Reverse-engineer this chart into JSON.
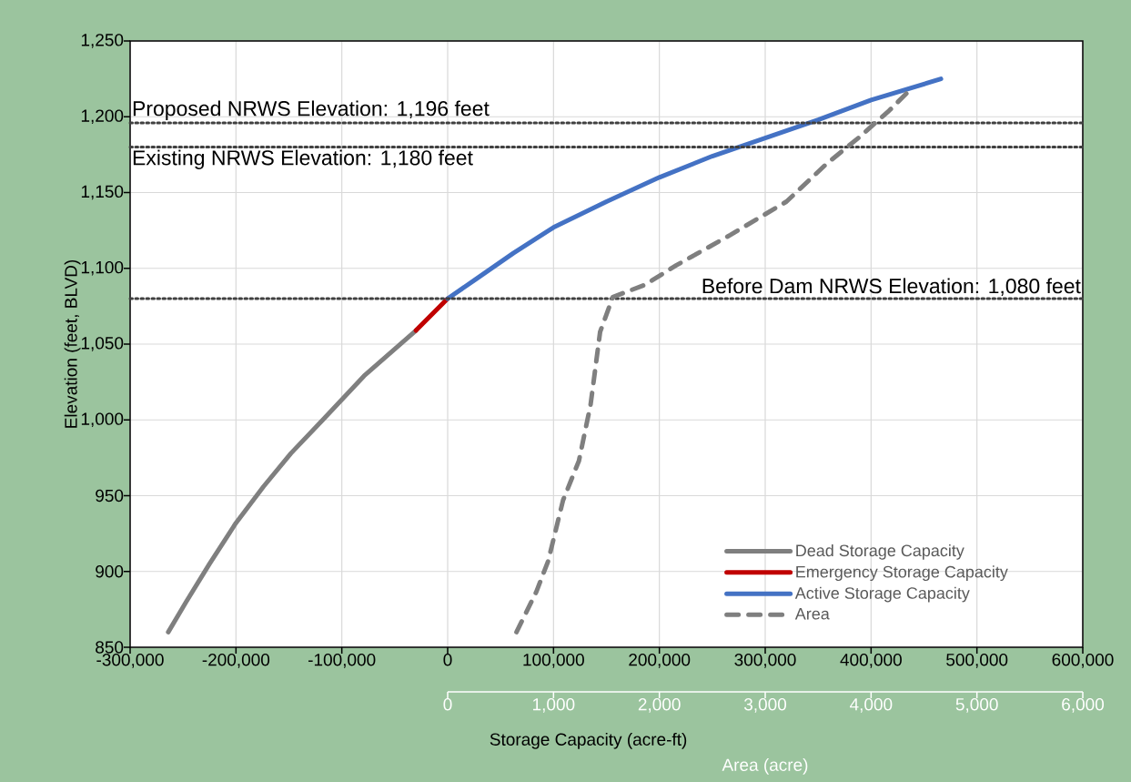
{
  "chart_data": {
    "type": "line",
    "xlabel": "Storage Capacity (acre-ft)",
    "x2label": "Area (acre)",
    "ylabel": "Elevation (feet, BLVD)",
    "xlim": [
      -300000,
      600000
    ],
    "x2lim": [
      0,
      6000
    ],
    "ylim": [
      850,
      1250
    ],
    "xticks": [
      {
        "value": -300000,
        "label": "-300,000"
      },
      {
        "value": -200000,
        "label": "-200,000"
      },
      {
        "value": -100000,
        "label": "-100,000"
      },
      0,
      {
        "value": 100000,
        "label": "100,000"
      },
      {
        "value": 200000,
        "label": "200,000"
      },
      {
        "value": 300000,
        "label": "300,000"
      },
      {
        "value": 400000,
        "label": "400,000"
      },
      {
        "value": 500000,
        "label": "500,000"
      },
      {
        "value": 600000,
        "label": "600,000"
      }
    ],
    "x2ticks": [
      0,
      {
        "value": 1000,
        "label": "1,000"
      },
      {
        "value": 2000,
        "label": "2,000"
      },
      {
        "value": 3000,
        "label": "3,000"
      },
      {
        "value": 4000,
        "label": "4,000"
      },
      {
        "value": 5000,
        "label": "5,000"
      },
      {
        "value": 6000,
        "label": "6,000"
      }
    ],
    "yticks": [
      850,
      900,
      950,
      {
        "value": 1000,
        "label": "1,000"
      },
      {
        "value": 1050,
        "label": "1,050"
      },
      {
        "value": 1100,
        "label": "1,100"
      },
      {
        "value": 1150,
        "label": "1,150"
      },
      {
        "value": 1200,
        "label": "1,200"
      },
      {
        "value": 1250,
        "label": "1,250"
      }
    ],
    "grid": true,
    "legend": "bottom right",
    "series": [
      {
        "name": "Dead Storage Capacity",
        "color": "#7f7f7f",
        "line_style": "solid",
        "x": [
          -264000,
          -247000,
          -225000,
          -200000,
          -174000,
          -148000,
          -118000,
          -79000,
          -30000
        ],
        "values": [
          860,
          880,
          905,
          932,
          956,
          978,
          1000,
          1029,
          1059
        ]
      },
      {
        "name": "Emergency Storage Capacity",
        "color": "#c00000",
        "line_style": "solid",
        "x": [
          -30000,
          0
        ],
        "values": [
          1059,
          1080
        ]
      },
      {
        "name": "Active Storage Capacity",
        "color": "#4472c4",
        "line_style": "solid",
        "x": [
          0,
          27000,
          62000,
          100000,
          150000,
          200000,
          250000,
          300000,
          350000,
          400000,
          466000
        ],
        "values": [
          1080,
          1093,
          1110,
          1127,
          1144,
          1160,
          1174,
          1186,
          1198,
          1211,
          1225
        ]
      },
      {
        "name": "Area",
        "color": "#7f7f7f",
        "line_style": "dashed",
        "axis": "x2",
        "x": [
          650,
          840,
          950,
          1090,
          1240,
          1350,
          1440,
          1560,
          1860,
          2160,
          2670,
          3200,
          3580,
          3880,
          4170,
          4400
        ],
        "values": [
          860,
          887,
          907,
          947,
          973,
          1010,
          1058,
          1081,
          1089,
          1102,
          1122,
          1144,
          1169,
          1186,
          1204,
          1220
        ]
      }
    ],
    "ref_lines": [
      {
        "axis": "y",
        "value": 1196,
        "label": "Proposed NRWS Elevation: 1,196 feet",
        "color": "#404040",
        "line_style": "dotted"
      },
      {
        "axis": "y",
        "value": 1180,
        "label": "Existing NRWS Elevation: 1,180 feet",
        "color": "#404040",
        "line_style": "dotted"
      },
      {
        "axis": "y",
        "value": 1080,
        "label": "Before Dam NRWS Elevation: 1,080 feet",
        "color": "#404040",
        "line_style": "dotted"
      }
    ]
  }
}
